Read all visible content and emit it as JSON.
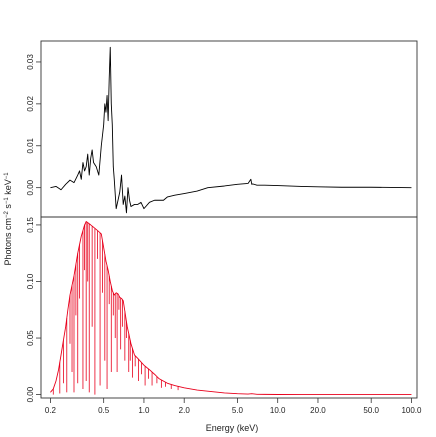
{
  "chart_data": [
    {
      "type": "line",
      "panel": "top",
      "xscale": "log",
      "xlim": [
        0.17,
        110
      ],
      "ylim": [
        -0.007,
        0.035
      ],
      "yticks": [
        0.0,
        0.01,
        0.02,
        0.03
      ],
      "ytick_labels": [
        "0.00",
        "0.01",
        "0.02",
        "0.03"
      ],
      "grid": false,
      "series": [
        {
          "color": "#000000",
          "x": [
            0.2,
            0.22,
            0.24,
            0.26,
            0.28,
            0.3,
            0.32,
            0.33,
            0.34,
            0.35,
            0.36,
            0.37,
            0.38,
            0.39,
            0.4,
            0.41,
            0.42,
            0.44,
            0.46,
            0.48,
            0.5,
            0.51,
            0.52,
            0.53,
            0.54,
            0.55,
            0.56,
            0.57,
            0.58,
            0.59,
            0.6,
            0.62,
            0.64,
            0.66,
            0.68,
            0.7,
            0.72,
            0.74,
            0.76,
            0.78,
            0.8,
            0.85,
            0.9,
            0.95,
            1.0,
            1.1,
            1.2,
            1.3,
            1.4,
            1.5,
            1.7,
            2.0,
            2.5,
            3.0,
            4.0,
            5.0,
            6.0,
            6.3,
            6.4,
            6.5,
            7.0,
            8.0,
            10.0,
            15.0,
            20.0,
            30.0,
            50.0,
            100.0
          ],
          "y": [
            0.0,
            0.0003,
            -0.0005,
            0.0008,
            0.0018,
            0.0012,
            0.003,
            0.004,
            0.002,
            0.006,
            0.004,
            0.005,
            0.008,
            0.003,
            0.007,
            0.009,
            0.006,
            0.005,
            0.003,
            0.01,
            0.015,
            0.02,
            0.018,
            0.022,
            0.016,
            0.026,
            0.0335,
            0.02,
            0.015,
            0.005,
            0.002,
            -0.005,
            -0.003,
            -0.001,
            0.003,
            -0.004,
            -0.002,
            -0.006,
            0.0,
            -0.003,
            -0.0045,
            -0.004,
            -0.004,
            -0.0035,
            -0.005,
            -0.0035,
            -0.003,
            -0.003,
            -0.003,
            -0.0022,
            -0.0018,
            -0.0014,
            -0.0008,
            0.0,
            0.0004,
            0.0008,
            0.001,
            0.002,
            0.0008,
            0.0009,
            0.0006,
            0.0006,
            0.0005,
            0.0003,
            0.0002,
            0.0001,
            0.0001,
            0.0
          ]
        }
      ]
    },
    {
      "type": "line",
      "panel": "bottom",
      "xscale": "log",
      "xlabel": "Energy (keV)",
      "ylabel": "Photons cm^-2 s^-1 keV^-1",
      "xlim": [
        0.17,
        110
      ],
      "ylim": [
        -0.003,
        0.157
      ],
      "xticks": [
        0.2,
        0.5,
        1.0,
        2.0,
        5.0,
        10.0,
        20.0,
        50.0,
        100.0
      ],
      "xtick_labels": [
        "0.2",
        "0.5",
        "1.0",
        "2.0",
        "5.0",
        "10.0",
        "20.0",
        "50.0",
        "100.0"
      ],
      "yticks": [
        0.0,
        0.05,
        0.1,
        0.15
      ],
      "ytick_labels": [
        "0.00",
        "0.05",
        "0.10",
        "0.15"
      ],
      "grid": false,
      "series": [
        {
          "color": "#e8001c",
          "x": [
            0.2,
            0.21,
            0.22,
            0.23,
            0.24,
            0.25,
            0.26,
            0.27,
            0.28,
            0.3,
            0.32,
            0.34,
            0.36,
            0.37,
            0.38,
            0.4,
            0.42,
            0.44,
            0.46,
            0.48,
            0.5,
            0.52,
            0.54,
            0.56,
            0.58,
            0.6,
            0.62,
            0.64,
            0.66,
            0.68,
            0.7,
            0.75,
            0.8,
            0.85,
            0.9,
            1.0,
            1.1,
            1.2,
            1.3,
            1.5,
            1.7,
            2.0,
            2.5,
            3.0,
            4.0,
            5.0,
            6.0,
            6.4,
            7.0,
            8.0,
            10.0,
            15.0,
            20.0,
            30.0,
            50.0,
            100.0
          ],
          "y": [
            0.002,
            0.005,
            0.012,
            0.022,
            0.035,
            0.048,
            0.06,
            0.075,
            0.088,
            0.105,
            0.125,
            0.14,
            0.15,
            0.153,
            0.152,
            0.15,
            0.148,
            0.146,
            0.144,
            0.142,
            0.13,
            0.118,
            0.11,
            0.1,
            0.092,
            0.088,
            0.09,
            0.089,
            0.086,
            0.085,
            0.083,
            0.06,
            0.045,
            0.035,
            0.032,
            0.026,
            0.022,
            0.018,
            0.014,
            0.01,
            0.008,
            0.006,
            0.004,
            0.003,
            0.0015,
            0.0008,
            0.0005,
            0.0008,
            0.0003,
            0.0002,
            0.0001,
            0.0,
            0.0,
            0.0,
            0.0,
            0.0
          ],
          "absorption_dips_x": [
            0.21,
            0.235,
            0.25,
            0.265,
            0.28,
            0.29,
            0.3,
            0.31,
            0.32,
            0.33,
            0.35,
            0.36,
            0.37,
            0.38,
            0.39,
            0.41,
            0.43,
            0.45,
            0.47,
            0.49,
            0.51,
            0.53,
            0.55,
            0.57,
            0.59,
            0.61,
            0.63,
            0.65,
            0.67,
            0.69,
            0.72,
            0.74,
            0.77,
            0.79,
            0.82,
            0.86,
            0.91,
            0.96,
            1.02,
            1.08,
            1.15,
            1.25,
            1.35,
            1.45,
            1.6,
            1.8
          ],
          "absorption_dips_y": [
            0.0,
            0.001,
            0.01,
            0.002,
            0.045,
            0.02,
            0.002,
            0.07,
            0.01,
            0.085,
            0.005,
            0.11,
            0.012,
            0.1,
            0.002,
            0.06,
            0.0,
            0.12,
            0.008,
            0.09,
            0.03,
            0.005,
            0.08,
            0.02,
            0.07,
            0.05,
            0.02,
            0.075,
            0.04,
            0.06,
            0.03,
            0.05,
            0.02,
            0.03,
            0.015,
            0.025,
            0.012,
            0.018,
            0.008,
            0.014,
            0.008,
            0.01,
            0.006,
            0.007,
            0.005,
            0.004
          ]
        }
      ]
    }
  ]
}
